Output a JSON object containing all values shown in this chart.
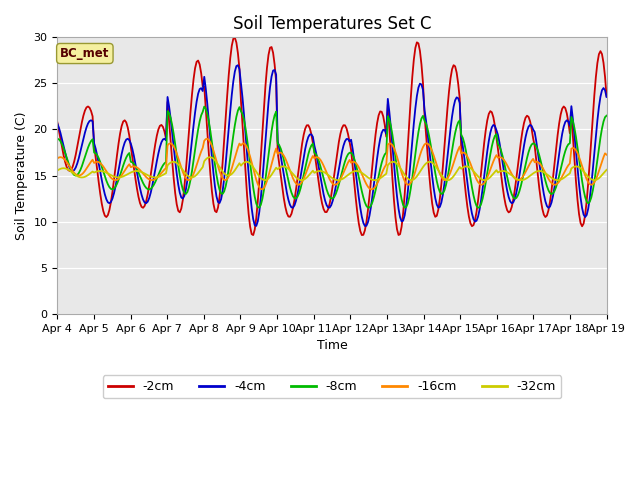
{
  "title": "Soil Temperatures Set C",
  "xlabel": "Time",
  "ylabel": "Soil Temperature (C)",
  "ylim": [
    0,
    30
  ],
  "yticks": [
    0,
    5,
    10,
    15,
    20,
    25,
    30
  ],
  "x_tick_labels": [
    "Apr 4",
    "Apr 5",
    "Apr 6",
    "Apr 7",
    "Apr 8",
    "Apr 9",
    "Apr 10",
    "Apr 11",
    "Apr 12",
    "Apr 13",
    "Apr 14",
    "Apr 15",
    "Apr 16",
    "Apr 17",
    "Apr 18",
    "Apr 19"
  ],
  "legend_labels": [
    "-2cm",
    "-4cm",
    "-8cm",
    "-16cm",
    "-32cm"
  ],
  "legend_colors": [
    "#cc0000",
    "#0000cc",
    "#00bb00",
    "#ff8800",
    "#cccc00"
  ],
  "series_colors": {
    "c2": "#cc0000",
    "c4": "#0000cc",
    "c8": "#00bb00",
    "c16": "#ff8800",
    "c32": "#cccc00"
  },
  "annotation_text": "BC_met",
  "bg_color": "#e8e8e8",
  "outer_bg": "#ffffff",
  "title_fontsize": 12,
  "axis_fontsize": 9,
  "tick_fontsize": 8
}
